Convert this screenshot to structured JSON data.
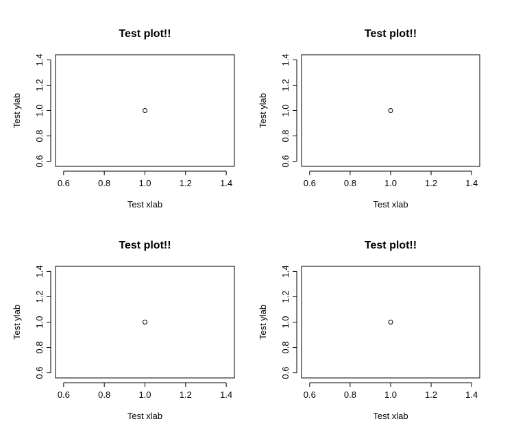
{
  "chart_data": [
    {
      "type": "scatter",
      "title": "Test plot!!",
      "xlabel": "Test xlab",
      "ylabel": "Test ylab",
      "xlim": [
        0.56,
        1.44
      ],
      "ylim": [
        0.56,
        1.44
      ],
      "xticks": [
        0.6,
        0.8,
        1.0,
        1.2,
        1.4
      ],
      "yticks": [
        0.6,
        0.8,
        1.0,
        1.2,
        1.4
      ],
      "xtick_labels": [
        "0.6",
        "0.8",
        "1.0",
        "1.2",
        "1.4"
      ],
      "ytick_labels": [
        "0.6",
        "0.8",
        "1.0",
        "1.2",
        "1.4"
      ],
      "points": [
        {
          "x": 1.0,
          "y": 1.0
        }
      ],
      "marker": "open-circle",
      "grid": false
    },
    {
      "type": "scatter",
      "title": "Test plot!!",
      "xlabel": "Test xlab",
      "ylabel": "Test ylab",
      "xlim": [
        0.56,
        1.44
      ],
      "ylim": [
        0.56,
        1.44
      ],
      "xticks": [
        0.6,
        0.8,
        1.0,
        1.2,
        1.4
      ],
      "yticks": [
        0.6,
        0.8,
        1.0,
        1.2,
        1.4
      ],
      "xtick_labels": [
        "0.6",
        "0.8",
        "1.0",
        "1.2",
        "1.4"
      ],
      "ytick_labels": [
        "0.6",
        "0.8",
        "1.0",
        "1.2",
        "1.4"
      ],
      "points": [
        {
          "x": 1.0,
          "y": 1.0
        }
      ],
      "marker": "open-circle",
      "grid": false
    },
    {
      "type": "scatter",
      "title": "Test plot!!",
      "xlabel": "Test xlab",
      "ylabel": "Test ylab",
      "xlim": [
        0.56,
        1.44
      ],
      "ylim": [
        0.56,
        1.44
      ],
      "xticks": [
        0.6,
        0.8,
        1.0,
        1.2,
        1.4
      ],
      "yticks": [
        0.6,
        0.8,
        1.0,
        1.2,
        1.4
      ],
      "xtick_labels": [
        "0.6",
        "0.8",
        "1.0",
        "1.2",
        "1.4"
      ],
      "ytick_labels": [
        "0.6",
        "0.8",
        "1.0",
        "1.2",
        "1.4"
      ],
      "points": [
        {
          "x": 1.0,
          "y": 1.0
        }
      ],
      "marker": "open-circle",
      "grid": false
    },
    {
      "type": "scatter",
      "title": "Test plot!!",
      "xlabel": "Test xlab",
      "ylabel": "Test ylab",
      "xlim": [
        0.56,
        1.44
      ],
      "ylim": [
        0.56,
        1.44
      ],
      "xticks": [
        0.6,
        0.8,
        1.0,
        1.2,
        1.4
      ],
      "yticks": [
        0.6,
        0.8,
        1.0,
        1.2,
        1.4
      ],
      "xtick_labels": [
        "0.6",
        "0.8",
        "1.0",
        "1.2",
        "1.4"
      ],
      "ytick_labels": [
        "0.6",
        "0.8",
        "1.0",
        "1.2",
        "1.4"
      ],
      "points": [
        {
          "x": 1.0,
          "y": 1.0
        }
      ],
      "marker": "open-circle",
      "grid": false
    }
  ]
}
